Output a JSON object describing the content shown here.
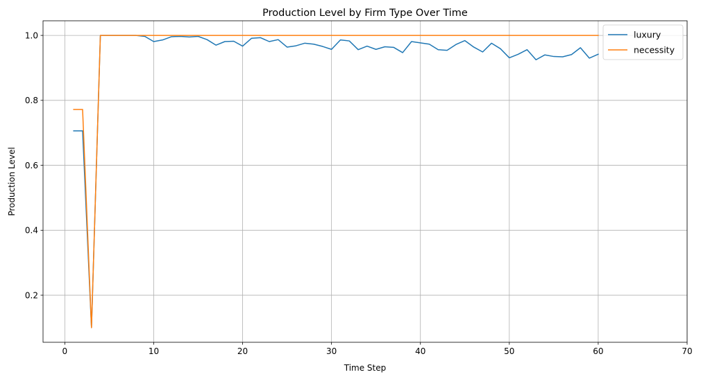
{
  "chart_data": {
    "type": "line",
    "title": "Production Level by Firm Type Over Time",
    "xlabel": "Time Step",
    "ylabel": "Production Level",
    "xlim": [
      -2.45,
      70
    ],
    "ylim": [
      0.055,
      1.045
    ],
    "xticks": [
      0,
      10,
      20,
      30,
      40,
      50,
      60,
      70
    ],
    "yticks": [
      0.2,
      0.4,
      0.6,
      0.8,
      1.0
    ],
    "xtick_labels": [
      "0",
      "10",
      "20",
      "30",
      "40",
      "50",
      "60",
      "70"
    ],
    "ytick_labels": [
      "0.2",
      "0.4",
      "0.6",
      "0.8",
      "1.0"
    ],
    "grid": true,
    "legend_position": "top-right",
    "series": [
      {
        "name": "luxury",
        "color": "#1f77b4",
        "x": [
          1,
          2,
          3,
          4,
          5,
          6,
          7,
          8,
          9,
          10,
          11,
          12,
          13,
          14,
          15,
          16,
          17,
          18,
          19,
          20,
          21,
          22,
          23,
          24,
          25,
          26,
          27,
          28,
          29,
          30,
          31,
          32,
          33,
          34,
          35,
          36,
          37,
          38,
          39,
          40,
          41,
          42,
          43,
          44,
          45,
          46,
          47,
          48,
          49,
          50,
          51,
          52,
          53,
          54,
          55,
          56,
          57,
          58,
          59,
          60
        ],
        "values": [
          0.706,
          0.706,
          0.1,
          1.0,
          1.0,
          1.0,
          1.0,
          1.0,
          0.997,
          0.981,
          0.986,
          0.996,
          0.997,
          0.995,
          0.997,
          0.987,
          0.97,
          0.981,
          0.982,
          0.967,
          0.991,
          0.993,
          0.981,
          0.987,
          0.964,
          0.968,
          0.976,
          0.973,
          0.966,
          0.957,
          0.986,
          0.983,
          0.956,
          0.967,
          0.957,
          0.965,
          0.963,
          0.947,
          0.981,
          0.977,
          0.973,
          0.956,
          0.954,
          0.972,
          0.984,
          0.964,
          0.949,
          0.976,
          0.959,
          0.931,
          0.942,
          0.956,
          0.925,
          0.94,
          0.935,
          0.934,
          0.941,
          0.962,
          0.93,
          0.942
        ]
      },
      {
        "name": "necessity",
        "color": "#ff7f0e",
        "x": [
          1,
          2,
          3,
          4,
          5,
          6,
          7,
          8,
          9,
          10,
          11,
          12,
          13,
          14,
          15,
          16,
          17,
          18,
          19,
          20,
          21,
          22,
          23,
          24,
          25,
          26,
          27,
          28,
          29,
          30,
          31,
          32,
          33,
          34,
          35,
          36,
          37,
          38,
          39,
          40,
          41,
          42,
          43,
          44,
          45,
          46,
          47,
          48,
          49,
          50,
          51,
          52,
          53,
          54,
          55,
          56,
          57,
          58,
          59,
          60
        ],
        "values": [
          0.772,
          0.772,
          0.1,
          1.0,
          1.0,
          1.0,
          1.0,
          1.0,
          1.0,
          1.0,
          1.0,
          1.0,
          1.0,
          1.0,
          1.0,
          1.0,
          1.0,
          1.0,
          1.0,
          1.0,
          1.0,
          1.0,
          1.0,
          1.0,
          1.0,
          1.0,
          1.0,
          1.0,
          1.0,
          1.0,
          1.0,
          1.0,
          1.0,
          1.0,
          1.0,
          1.0,
          1.0,
          1.0,
          1.0,
          1.0,
          1.0,
          1.0,
          1.0,
          1.0,
          1.0,
          1.0,
          1.0,
          1.0,
          1.0,
          1.0,
          1.0,
          1.0,
          1.0,
          1.0,
          1.0,
          1.0,
          1.0,
          1.0,
          1.0,
          1.0
        ]
      }
    ]
  }
}
